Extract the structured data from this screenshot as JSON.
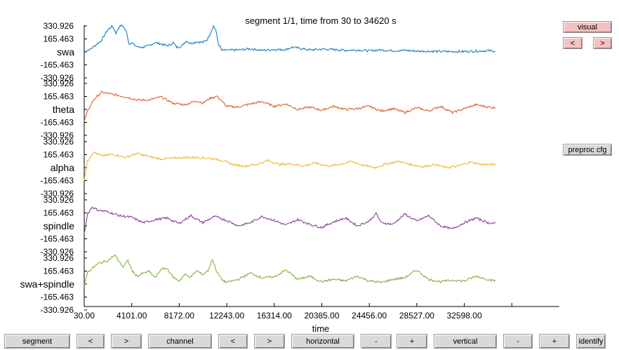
{
  "title": "segment 1/1, time from 30 to 34620 s",
  "xlabel": "time",
  "buttons": {
    "visual": "visual",
    "prev_small": "<",
    "next_small": ">",
    "preproc_cfg": "preproc cfg",
    "segment": "segment",
    "segment_prev": "<",
    "segment_next": ">",
    "channel": "channel",
    "channel_prev": "<",
    "channel_next": ">",
    "horizontal": "horizontal",
    "horizontal_minus": "-",
    "horizontal_plus": "+",
    "vertical": "vertical",
    "vertical_minus": "-",
    "vertical_plus": "+",
    "identify": "identify"
  },
  "colors": {
    "swa": "#0072bd",
    "theta": "#d95319",
    "alpha": "#edb120",
    "spindle": "#7e2f8e",
    "swa+spindle": "#77ac30",
    "button_face": "#d9d9d9",
    "button_highlight": "#f4c2c2"
  },
  "chart_data": {
    "type": "line",
    "title": "segment 1/1, time from 30 to 34620 s",
    "xlabel": "time",
    "ylabel": "",
    "xlim": [
      30,
      40000
    ],
    "x_ticks": [
      "30.00",
      "4101.00",
      "8172.00",
      "12243.00",
      "16314.00",
      "20385.00",
      "24456.00",
      "28527.00",
      "32598.00"
    ],
    "y_tick_labels": [
      "330.926",
      "165.463",
      "-165.463",
      "-330.926"
    ],
    "y_tick_values": [
      330.926,
      165.463,
      -165.463,
      -330.926
    ],
    "channel_center_ticks_blank": true,
    "channels": [
      {
        "name": "swa",
        "x": [
          30,
          600,
          1500,
          2000,
          2400,
          2700,
          2900,
          3100,
          3300,
          3600,
          3800,
          4000,
          4300,
          4600,
          5000,
          5500,
          6000,
          6500,
          7000,
          7300,
          7500,
          7800,
          8200,
          8600,
          9000,
          9500,
          10000,
          10400,
          10700,
          10900,
          11100,
          11300,
          11600,
          12000,
          13000,
          14000,
          15000,
          16000,
          17000,
          17500,
          18000,
          19000,
          20000,
          21000,
          22000,
          23000,
          24000,
          25000,
          26000,
          27000,
          28000,
          29000,
          30000,
          31000,
          32000,
          33000,
          34000,
          34620
        ],
        "values": [
          0,
          40,
          150,
          280,
          330,
          240,
          300,
          335,
          330,
          250,
          100,
          120,
          80,
          60,
          60,
          80,
          120,
          100,
          80,
          90,
          120,
          60,
          70,
          140,
          110,
          130,
          120,
          160,
          260,
          330,
          280,
          110,
          20,
          20,
          25,
          40,
          20,
          30,
          30,
          60,
          50,
          25,
          35,
          30,
          20,
          25,
          15,
          25,
          15,
          20,
          10,
          10,
          5,
          5,
          5,
          10,
          15,
          10
        ]
      },
      {
        "name": "theta",
        "x": [
          30,
          300,
          800,
          1500,
          2500,
          3500,
          4500,
          5500,
          6500,
          7500,
          8500,
          9500,
          10000,
          10600,
          11200,
          12000,
          13000,
          14000,
          15000,
          16000,
          17000,
          18000,
          19000,
          20000,
          21000,
          22000,
          23000,
          24000,
          25000,
          26000,
          27000,
          28000,
          29000,
          30000,
          31000,
          32000,
          33000,
          34000,
          34620
        ],
        "values": [
          -150,
          -30,
          120,
          220,
          190,
          160,
          120,
          120,
          160,
          80,
          60,
          110,
          80,
          140,
          170,
          40,
          30,
          70,
          100,
          40,
          70,
          0,
          30,
          -10,
          40,
          0,
          10,
          40,
          -20,
          10,
          -40,
          20,
          -20,
          40,
          -40,
          10,
          60,
          30,
          20
        ]
      },
      {
        "name": "alpha",
        "x": [
          30,
          300,
          800,
          1500,
          2500,
          3500,
          4500,
          5500,
          6500,
          7500,
          8500,
          9500,
          10500,
          11500,
          12500,
          13500,
          14500,
          15500,
          16500,
          17500,
          18500,
          19500,
          20500,
          21500,
          22500,
          23500,
          24500,
          25500,
          26500,
          27500,
          28500,
          29500,
          30500,
          31500,
          32500,
          33500,
          34620
        ],
        "values": [
          -150,
          80,
          200,
          150,
          170,
          130,
          180,
          140,
          110,
          120,
          130,
          130,
          120,
          100,
          40,
          20,
          40,
          90,
          40,
          50,
          20,
          60,
          20,
          40,
          80,
          30,
          0,
          50,
          80,
          40,
          10,
          40,
          0,
          20,
          70,
          40,
          40
        ]
      },
      {
        "name": "spindle",
        "x": [
          30,
          300,
          700,
          1200,
          2000,
          3000,
          4000,
          5000,
          6000,
          7000,
          8000,
          9000,
          10000,
          11000,
          12000,
          13000,
          14000,
          15000,
          16000,
          17000,
          18000,
          19000,
          20000,
          21000,
          22000,
          23000,
          24000,
          24600,
          25000,
          26000,
          27000,
          28000,
          29000,
          30000,
          31000,
          32000,
          33000,
          34000,
          34620
        ],
        "values": [
          -100,
          150,
          240,
          200,
          180,
          130,
          110,
          40,
          80,
          100,
          30,
          130,
          40,
          120,
          70,
          0,
          40,
          120,
          70,
          10,
          80,
          20,
          -20,
          50,
          100,
          0,
          60,
          160,
          40,
          20,
          150,
          60,
          130,
          0,
          -40,
          40,
          100,
          40,
          30
        ]
      },
      {
        "name": "swa+spindle",
        "x": [
          30,
          300,
          700,
          1200,
          2000,
          2600,
          3000,
          3300,
          3700,
          4100,
          4500,
          5000,
          5500,
          6000,
          6500,
          7000,
          7500,
          8000,
          8500,
          9000,
          9500,
          10000,
          10500,
          10800,
          11200,
          11600,
          12000,
          13000,
          14000,
          15000,
          16000,
          17000,
          18000,
          19000,
          20000,
          21000,
          22000,
          23000,
          24000,
          25000,
          26000,
          27000,
          28000,
          29000,
          30000,
          31000,
          32000,
          33000,
          34000,
          34620
        ],
        "values": [
          -20,
          150,
          200,
          260,
          300,
          370,
          280,
          220,
          300,
          160,
          100,
          140,
          160,
          80,
          190,
          200,
          90,
          40,
          120,
          90,
          170,
          120,
          180,
          320,
          150,
          60,
          20,
          60,
          140,
          80,
          90,
          180,
          60,
          100,
          30,
          60,
          40,
          100,
          40,
          20,
          60,
          80,
          180,
          60,
          30,
          50,
          40,
          100,
          60,
          40
        ]
      }
    ]
  }
}
